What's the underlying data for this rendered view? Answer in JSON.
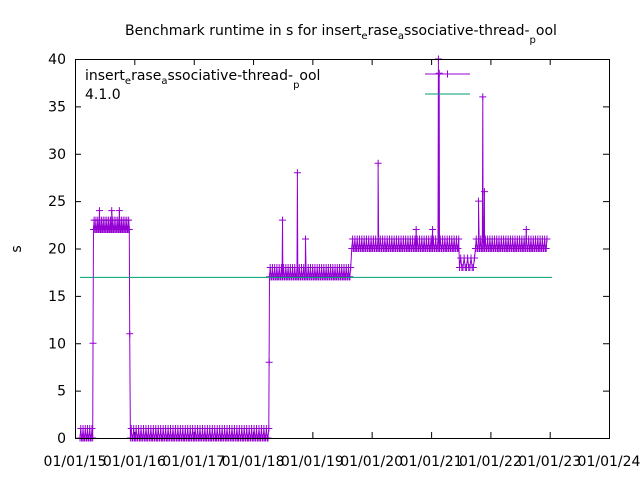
{
  "chart_data": {
    "type": "line",
    "title": {
      "prefix": "Benchmark runtime in s for insert",
      "sub1": "e",
      "mid1": "rase",
      "sub2": "a",
      "mid2": "ssociative-thread-",
      "sub3": "p",
      "end": "ool"
    },
    "ylabel": "s",
    "xlabel": "",
    "ylim": [
      0,
      40
    ],
    "xlim": [
      "2015-01-01",
      "2024-01-01"
    ],
    "x_scale": "date",
    "yticks": [
      0,
      5,
      10,
      15,
      20,
      25,
      30,
      35,
      40
    ],
    "xticks": [
      "2015-01-01",
      "2016-01-01",
      "2017-01-01",
      "2018-01-01",
      "2019-01-01",
      "2020-01-01",
      "2021-01-01",
      "2022-01-01",
      "2023-01-01",
      "2024-01-01"
    ],
    "xtick_labels": [
      "01/01/15",
      "01/01/16",
      "01/01/17",
      "01/01/18",
      "01/01/19",
      "01/01/20",
      "01/01/21",
      "01/01/22",
      "01/01/23",
      "01/01/24"
    ],
    "grid": false,
    "legend_position": "top-left",
    "series": [
      {
        "name": {
          "prefix": "insert",
          "sub1": "e",
          "mid1": "rase",
          "sub2": "a",
          "mid2": "ssociative-thread-",
          "sub3": "p",
          "end": "ool"
        },
        "color": "#9400d3",
        "marker": "plus",
        "segments": [
          {
            "start": "2015-02-01",
            "end": "2015-04-20",
            "base": 0,
            "alt": 1,
            "count": 18
          },
          {
            "start": "2015-04-25",
            "end": "2015-12-01",
            "base": 22,
            "alt": 23,
            "count": 60
          },
          {
            "start": "2015-12-08",
            "end": "2018-04-08",
            "base": 0,
            "alt": 1,
            "count": 170
          },
          {
            "start": "2018-04-12",
            "end": "2019-08-25",
            "base": 17,
            "alt": 18,
            "count": 110
          },
          {
            "start": "2019-09-01",
            "end": "2021-06-20",
            "base": 20,
            "alt": 21,
            "count": 140
          },
          {
            "start": "2021-06-25",
            "end": "2021-09-25",
            "base": 18,
            "alt": 19,
            "count": 14
          },
          {
            "start": "2021-10-01",
            "end": "2022-12-15",
            "base": 20,
            "alt": 21,
            "count": 95
          }
        ],
        "spikes": [
          {
            "x": "2015-04-22",
            "y": 10
          },
          {
            "x": "2015-06-01",
            "y": 24
          },
          {
            "x": "2015-08-15",
            "y": 24
          },
          {
            "x": "2015-10-01",
            "y": 24
          },
          {
            "x": "2015-12-04",
            "y": 11
          },
          {
            "x": "2018-04-10",
            "y": 8
          },
          {
            "x": "2018-07-01",
            "y": 23
          },
          {
            "x": "2018-10-01",
            "y": 28
          },
          {
            "x": "2018-11-20",
            "y": 21
          },
          {
            "x": "2020-02-10",
            "y": 29
          },
          {
            "x": "2020-10-01",
            "y": 22
          },
          {
            "x": "2021-01-10",
            "y": 22
          },
          {
            "x": "2021-02-15",
            "y": 40
          },
          {
            "x": "2021-02-20",
            "y": 38.5
          },
          {
            "x": "2021-10-20",
            "y": 25
          },
          {
            "x": "2021-11-15",
            "y": 36
          },
          {
            "x": "2021-11-25",
            "y": 26
          },
          {
            "x": "2022-08-10",
            "y": 22
          }
        ]
      },
      {
        "name": "4.1.0",
        "color": "#009e73",
        "marker": "none",
        "x": [
          "2015-02-01",
          "2023-01-15"
        ],
        "y": [
          17,
          17
        ]
      }
    ]
  }
}
